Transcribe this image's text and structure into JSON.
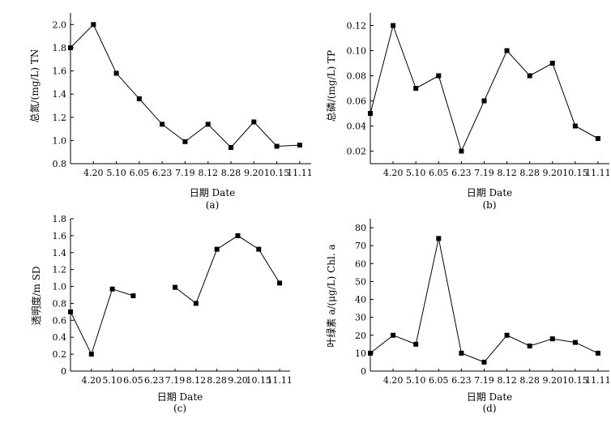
{
  "charts": [
    {
      "caption": "(a)",
      "xlabel": "日期 Date",
      "ylabel": "总氮/(mg/L) TN",
      "ylim": [
        0.8,
        2.1
      ],
      "yticks": [
        "0.8",
        "1.0",
        "1.2",
        "1.4",
        "1.6",
        "1.8",
        "2.0"
      ]
    },
    {
      "caption": "(b)",
      "xlabel": "日期 Date",
      "ylabel": "总磷/(mg/L) TP",
      "ylim": [
        0.01,
        0.13
      ],
      "yticks": [
        "0.02",
        "0.04",
        "0.06",
        "0.08",
        "0.10",
        "0.12"
      ]
    },
    {
      "caption": "(c)",
      "xlabel": "日期 Date",
      "ylabel": "透明度/m SD",
      "ylim": [
        0,
        1.8
      ],
      "yticks": [
        "0",
        "0.2",
        "0.4",
        "0.6",
        "0.8",
        "1.0",
        "1.2",
        "1.4",
        "1.6",
        "1.8"
      ]
    },
    {
      "caption": "(d)",
      "xlabel": "日期 Date",
      "ylabel": "叶绿素 a/(μg/L) Chl. a",
      "ylim": [
        0,
        85
      ],
      "yticks": [
        "0",
        "10",
        "20",
        "30",
        "40",
        "50",
        "60",
        "70",
        "80"
      ]
    }
  ],
  "chart_data": [
    {
      "type": "line",
      "categories": [
        "",
        "4.20",
        "5.10",
        "6.05",
        "6.23",
        "7.19",
        "8.12",
        "8.28",
        "9.20",
        "10.15",
        "11.11"
      ],
      "values": [
        1.8,
        2.0,
        1.58,
        1.36,
        1.14,
        0.99,
        1.14,
        0.94,
        1.16,
        0.95,
        0.96
      ],
      "xlabel": "日期 Date",
      "ylabel": "总氮/(mg/L) TN",
      "ylim": [
        0.8,
        2.1
      ],
      "marker": "square",
      "color": "#000000"
    },
    {
      "type": "line",
      "categories": [
        "",
        "4.20",
        "5.10",
        "6.05",
        "6.23",
        "7.19",
        "8.12",
        "8.28",
        "9.20",
        "10.15",
        "11.11"
      ],
      "values": [
        0.05,
        0.12,
        0.07,
        0.08,
        0.02,
        0.06,
        0.1,
        0.08,
        0.09,
        0.04,
        0.03
      ],
      "xlabel": "日期 Date",
      "ylabel": "总磷/(mg/L) TP",
      "ylim": [
        0.01,
        0.13
      ],
      "marker": "square",
      "color": "#000000"
    },
    {
      "type": "line",
      "categories": [
        "",
        "4.20",
        "5.10",
        "6.05",
        "6.23",
        "7.19",
        "8.12",
        "8.28",
        "9.20",
        "10.15",
        "11.11"
      ],
      "values": [
        0.7,
        0.2,
        0.97,
        0.89,
        null,
        0.99,
        0.8,
        1.44,
        1.6,
        1.44,
        1.04
      ],
      "xlabel": "日期 Date",
      "ylabel": "透明度/m SD",
      "ylim": [
        0,
        1.8
      ],
      "marker": "square",
      "color": "#000000"
    },
    {
      "type": "line",
      "categories": [
        "",
        "4.20",
        "5.10",
        "6.05",
        "6.23",
        "7.19",
        "8.12",
        "8.28",
        "9.20",
        "10.15",
        "11.11"
      ],
      "values": [
        10,
        20,
        15,
        74,
        10,
        5,
        20,
        14,
        18,
        16,
        10
      ],
      "xlabel": "日期 Date",
      "ylabel": "叶绿素 a/(μg/L) Chl. a",
      "ylim": [
        0,
        85
      ],
      "marker": "square",
      "color": "#000000"
    }
  ]
}
